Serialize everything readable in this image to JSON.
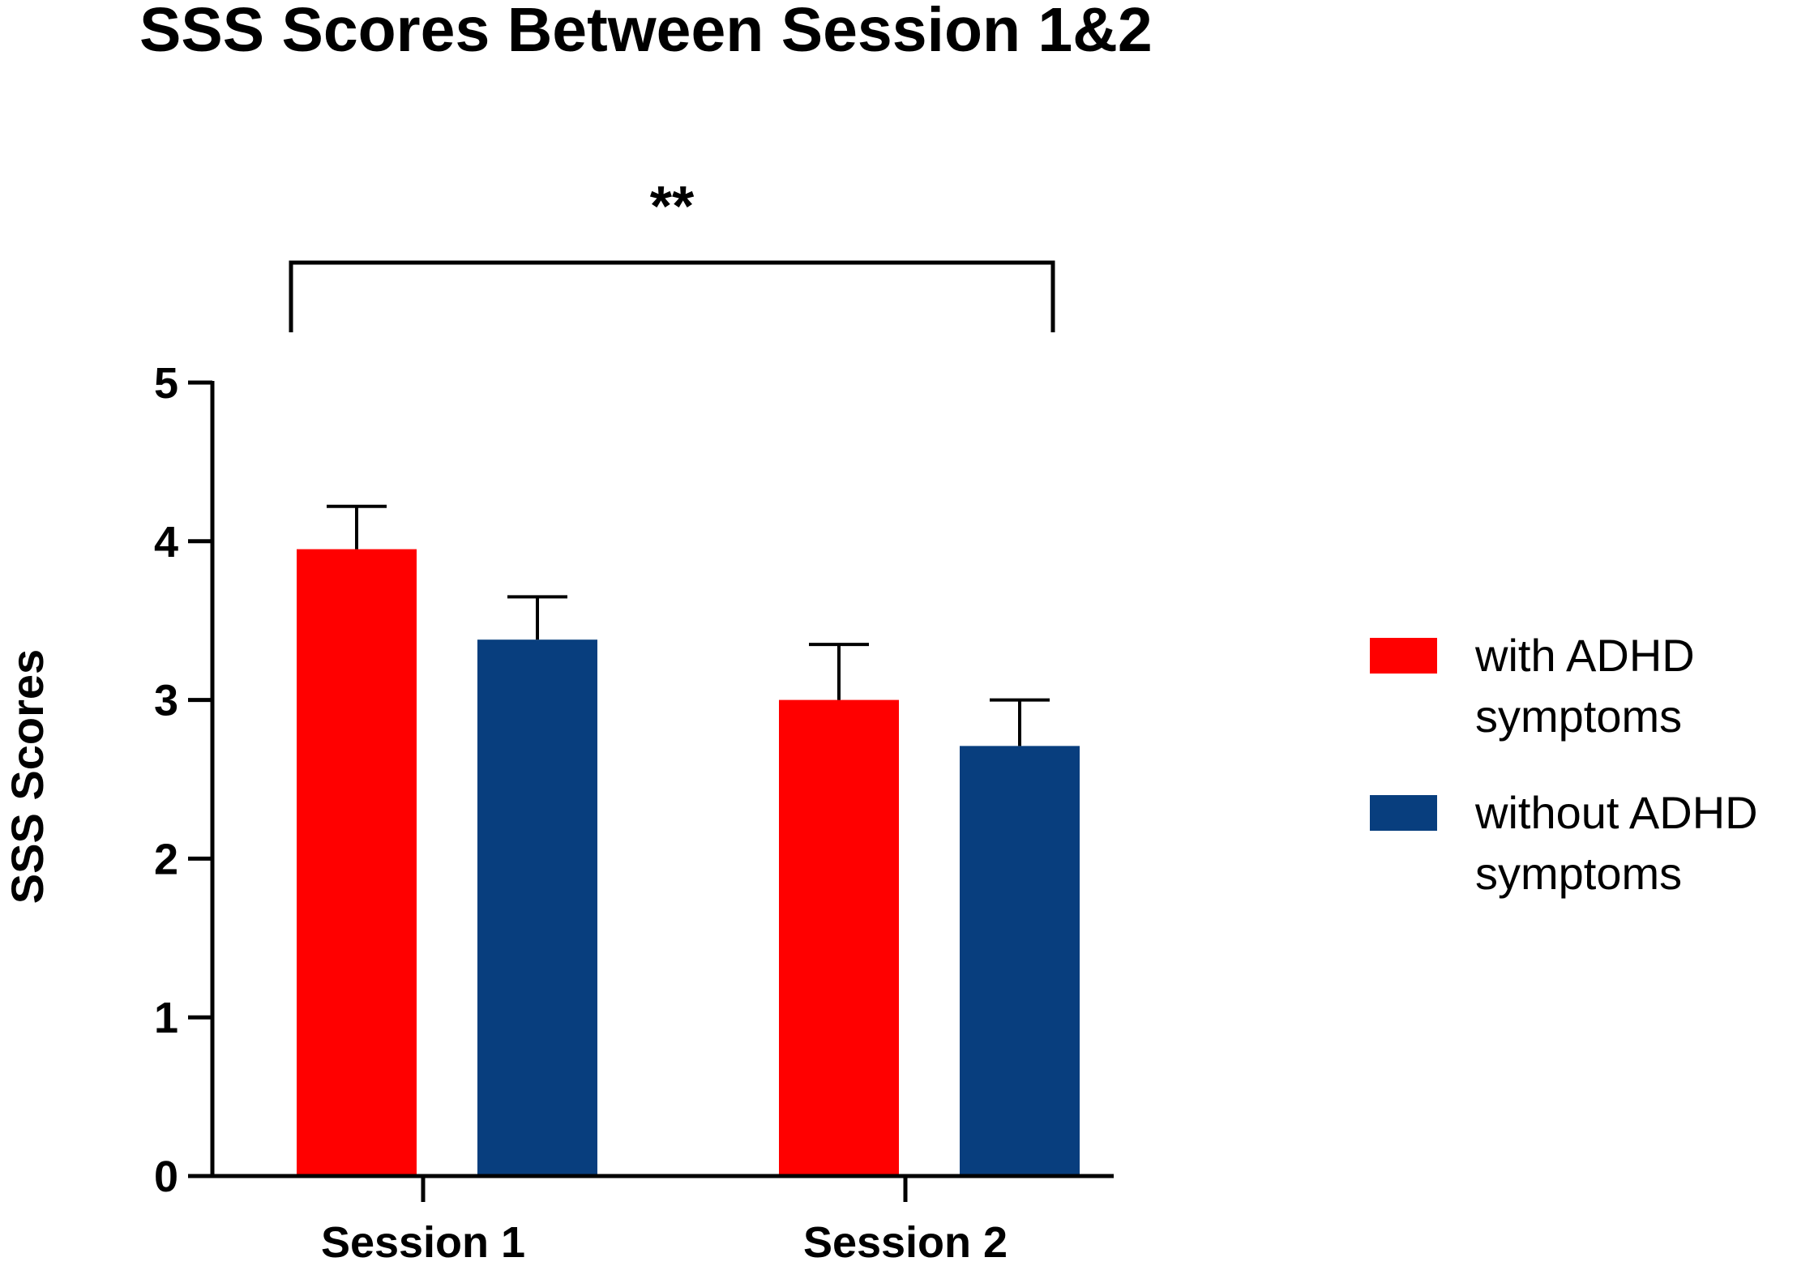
{
  "chart_data": {
    "type": "bar",
    "title": "SSS Scores Between Session 1&2",
    "xlabel": "",
    "ylabel": "SSS Scores",
    "ylim": [
      0,
      5
    ],
    "yticks": [
      "0",
      "1",
      "2",
      "3",
      "4",
      "5"
    ],
    "categories": [
      "Session 1",
      "Session 2"
    ],
    "series": [
      {
        "name": "with ADHD symptoms",
        "values": [
          3.95,
          3.0
        ],
        "errors": [
          0.27,
          0.35
        ],
        "color": "#ff0000"
      },
      {
        "name": "without ADHD symptoms",
        "values": [
          3.38,
          2.71
        ],
        "errors": [
          0.27,
          0.29
        ],
        "color": "#083e7e"
      }
    ],
    "legend": {
      "placement": "right",
      "entries": [
        {
          "line1": "with ADHD",
          "line2": "symptoms"
        },
        {
          "line1": "without ADHD",
          "line2": "symptoms"
        }
      ]
    },
    "significance": {
      "label": "**",
      "between": [
        "Session 1",
        "Session 2"
      ]
    },
    "grid": false
  }
}
